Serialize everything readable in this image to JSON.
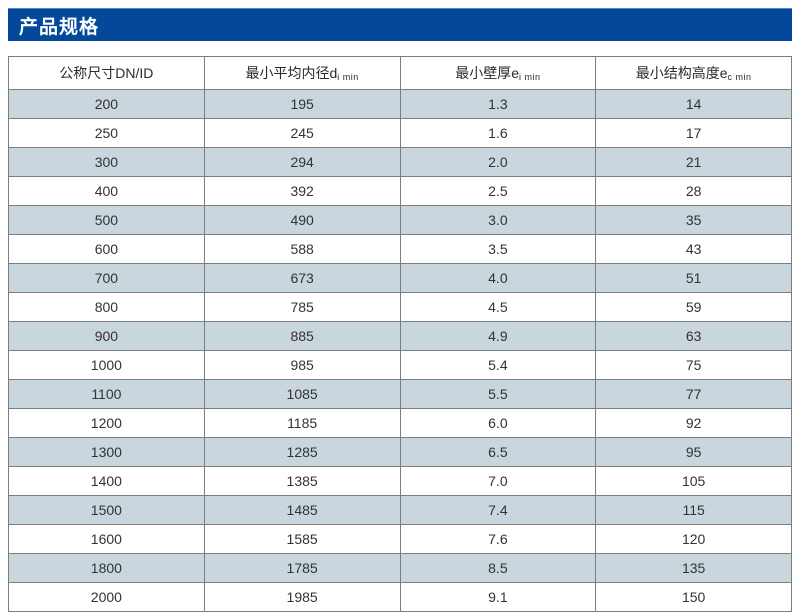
{
  "header": {
    "title": "产品规格"
  },
  "table": {
    "columns": [
      {
        "label": "公称尺寸DN/ID",
        "sub": ""
      },
      {
        "label": "最小平均内径d",
        "sub": "i min"
      },
      {
        "label": "最小壁厚e",
        "sub": "i min"
      },
      {
        "label": "最小结构高度e",
        "sub": "c min"
      }
    ],
    "rows": [
      [
        "200",
        "195",
        "1.3",
        "14"
      ],
      [
        "250",
        "245",
        "1.6",
        "17"
      ],
      [
        "300",
        "294",
        "2.0",
        "21"
      ],
      [
        "400",
        "392",
        "2.5",
        "28"
      ],
      [
        "500",
        "490",
        "3.0",
        "35"
      ],
      [
        "600",
        "588",
        "3.5",
        "43"
      ],
      [
        "700",
        "673",
        "4.0",
        "51"
      ],
      [
        "800",
        "785",
        "4.5",
        "59"
      ],
      [
        "900",
        "885",
        "4.9",
        "63"
      ],
      [
        "1000",
        "985",
        "5.4",
        "75"
      ],
      [
        "1100",
        "1085",
        "5.5",
        "77"
      ],
      [
        "1200",
        "1185",
        "6.0",
        "92"
      ],
      [
        "1300",
        "1285",
        "6.5",
        "95"
      ],
      [
        "1400",
        "1385",
        "7.0",
        "105"
      ],
      [
        "1500",
        "1485",
        "7.4",
        "115"
      ],
      [
        "1600",
        "1585",
        "7.6",
        "120"
      ],
      [
        "1800",
        "1785",
        "8.5",
        "135"
      ],
      [
        "2000",
        "1985",
        "9.1",
        "150"
      ]
    ]
  },
  "colors": {
    "title_bar": "#04489a",
    "row_shaded": "#c9d6de",
    "border": "#7d7d7d",
    "title_text": "#ffffff"
  }
}
